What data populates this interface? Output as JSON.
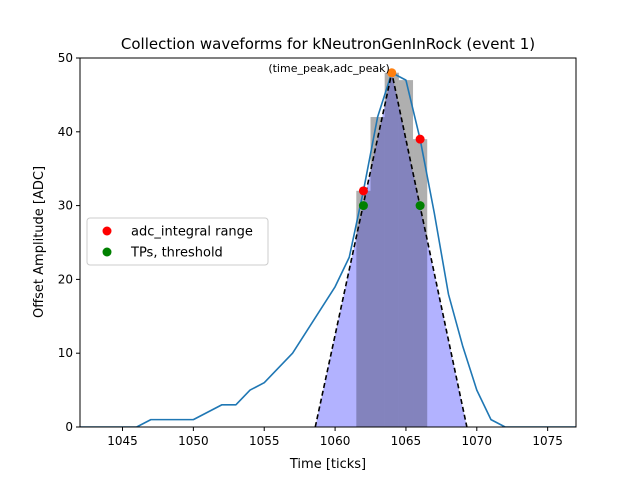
{
  "chart_data": {
    "type": "line",
    "title": "Collection waveforms for kNeutronGenInRock (event 1)",
    "xlabel": "Time [ticks]",
    "ylabel": "Offset Amplitude [ADC]",
    "xlim": [
      1042,
      1077
    ],
    "ylim": [
      0,
      50
    ],
    "xticks": [
      1045,
      1050,
      1055,
      1060,
      1065,
      1070,
      1075
    ],
    "yticks": [
      0,
      10,
      20,
      30,
      40,
      50
    ],
    "grid": false,
    "legend_position": "center-left",
    "waveform": {
      "color": "#1f77b4",
      "x": [
        1042,
        1043,
        1044,
        1045,
        1046,
        1047,
        1048,
        1049,
        1050,
        1051,
        1052,
        1053,
        1054,
        1055,
        1056,
        1057,
        1058,
        1059,
        1060,
        1061,
        1062,
        1063,
        1064,
        1065,
        1066,
        1067,
        1068,
        1069,
        1070,
        1071,
        1072,
        1073,
        1074,
        1075,
        1076,
        1077
      ],
      "y": [
        0,
        0,
        0,
        0,
        0,
        1,
        1,
        1,
        1,
        2,
        3,
        3,
        5,
        6,
        8,
        10,
        13,
        16,
        19,
        23,
        32,
        42,
        48,
        47,
        39,
        29,
        18,
        11,
        5,
        1,
        0,
        0,
        0,
        0,
        0,
        0
      ]
    },
    "bars": {
      "color": "#808080",
      "opacity": 0.5,
      "x": [
        1062,
        1063,
        1064,
        1065,
        1066
      ],
      "values": [
        32,
        42,
        48,
        47,
        39
      ]
    },
    "shaded_region": {
      "color": "#0000ff",
      "opacity": 0.3,
      "x": [
        1061.5,
        1062,
        1063,
        1064,
        1065,
        1066,
        1066.5
      ],
      "y": [
        32,
        32,
        42,
        48,
        47,
        39,
        39
      ]
    },
    "triangle": {
      "color": "#000000",
      "style": "dashed",
      "x": [
        1058.6,
        1064,
        1069.3
      ],
      "y": [
        0,
        48,
        0
      ]
    },
    "peak_point": {
      "x": 1064,
      "y": 48,
      "color": "#ff7f0e",
      "annotation": "(time_peak,adc_peak)"
    },
    "series": [
      {
        "name": "adc_integral range",
        "color": "#ff0000",
        "x": [
          1062,
          1066
        ],
        "y": [
          32,
          39
        ]
      },
      {
        "name": "TPs, threshold",
        "color": "#008000",
        "x": [
          1062,
          1066
        ],
        "y": [
          30,
          30
        ]
      }
    ]
  }
}
